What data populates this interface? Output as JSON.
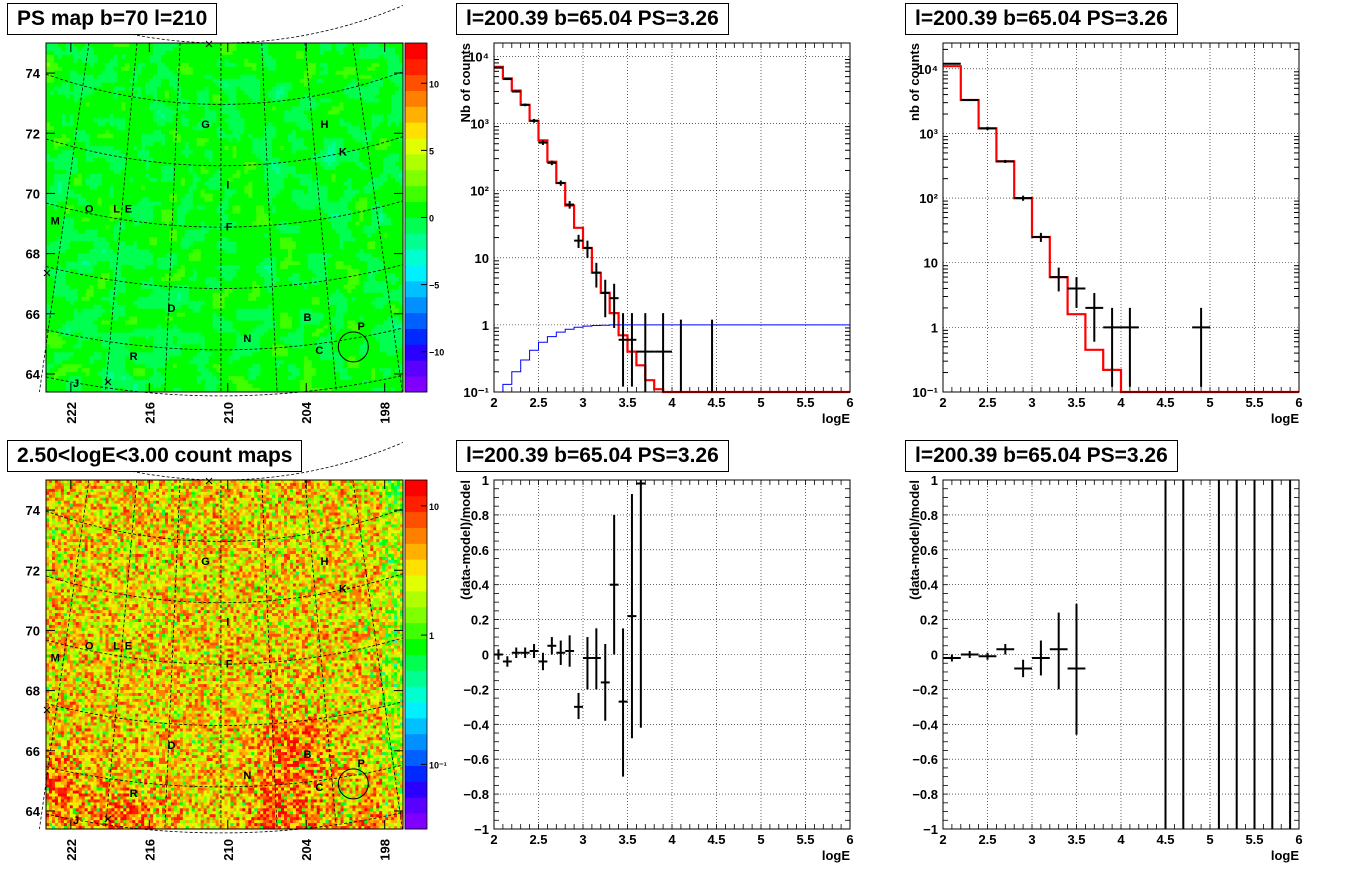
{
  "panels": {
    "map1_title": "PS map b=70 l=210",
    "map2_title": "2.50<logE<3.00 count maps",
    "spec_title": "l=200.39 b=65.04 PS=3.26"
  },
  "map_axes": {
    "b_ticks": [
      "74",
      "72",
      "70",
      "68",
      "66",
      "64"
    ],
    "b_values": [
      74,
      72,
      70,
      68,
      66,
      64
    ],
    "l_ticks": [
      "222",
      "216",
      "210",
      "204",
      "198"
    ],
    "l_values": [
      222,
      216,
      210,
      204,
      198
    ],
    "b_range": [
      63.4,
      75.0
    ],
    "l_range": [
      223.9,
      196.6
    ],
    "source_labels": [
      {
        "t": "G",
        "l": 211.7,
        "b": 72.3
      },
      {
        "t": "H",
        "l": 202.6,
        "b": 72.3
      },
      {
        "t": "K",
        "l": 201.2,
        "b": 71.4
      },
      {
        "t": "I",
        "l": 210.0,
        "b": 70.3
      },
      {
        "t": "M",
        "l": 223.2,
        "b": 69.1
      },
      {
        "t": "O",
        "l": 220.6,
        "b": 69.5
      },
      {
        "t": "L",
        "l": 218.5,
        "b": 69.5
      },
      {
        "t": "E",
        "l": 217.6,
        "b": 69.5
      },
      {
        "t": "F",
        "l": 209.9,
        "b": 68.9
      },
      {
        "t": "D",
        "l": 214.3,
        "b": 66.2
      },
      {
        "t": "B",
        "l": 203.9,
        "b": 65.9
      },
      {
        "t": "P",
        "l": 199.8,
        "b": 65.6
      },
      {
        "t": "N",
        "l": 208.5,
        "b": 65.2
      },
      {
        "t": "C",
        "l": 203.0,
        "b": 64.8
      },
      {
        "t": "R",
        "l": 217.2,
        "b": 64.6
      },
      {
        "t": "J",
        "l": 221.6,
        "b": 63.7
      }
    ],
    "circle": {
      "l": 200.4,
      "b": 64.9
    }
  },
  "map1_palette": {
    "ticks": [
      "10",
      "5",
      "0",
      "−5",
      "−10"
    ],
    "tick_values": [
      10,
      5,
      0,
      -5,
      -10
    ],
    "range": [
      -13,
      13
    ],
    "colors": [
      "#7f00ff",
      "#5a00ff",
      "#2a00ff",
      "#0028ff",
      "#0060ff",
      "#0090ff",
      "#00c0ff",
      "#00f0ff",
      "#00ffd0",
      "#00ff90",
      "#00ff50",
      "#00ff00",
      "#40ff00",
      "#80ff00",
      "#b0ff00",
      "#e0ff00",
      "#ffe000",
      "#ffb000",
      "#ff8000",
      "#ff5000",
      "#ff2000",
      "#ff0000"
    ]
  },
  "map2_palette": {
    "ticks": [
      "10",
      "1",
      "10⁻¹"
    ],
    "tick_values": [
      10,
      1,
      0.1
    ],
    "log_range": [
      -1.5,
      1.2
    ],
    "colors": [
      "#7f00ff",
      "#5a00ff",
      "#2a00ff",
      "#0028ff",
      "#0060ff",
      "#0090ff",
      "#00c0ff",
      "#00f0ff",
      "#00ffd0",
      "#00ff90",
      "#00ff50",
      "#00ff00",
      "#40ff00",
      "#80ff00",
      "#b0ff00",
      "#e0ff00",
      "#ffe000",
      "#ffb000",
      "#ff8000",
      "#ff5000",
      "#ff2000",
      "#ff0000"
    ]
  },
  "chart_data": [
    {
      "type": "line",
      "id": "spec1",
      "title": "l=200.39 b=65.04 PS=3.26",
      "xlabel": "logE",
      "ylabel": "Nb of counts",
      "xlim": [
        2,
        6
      ],
      "ylim_log": [
        -1,
        4.2
      ],
      "x_ticks": [
        "2",
        "2.5",
        "3",
        "3.5",
        "4",
        "4.5",
        "5",
        "5.5",
        "6"
      ],
      "x_tick_values": [
        2,
        2.5,
        3,
        3.5,
        4,
        4.5,
        5,
        5.5,
        6
      ],
      "y_ticks": [
        "10⁻¹",
        "1",
        "10",
        "10²",
        "10³",
        "10⁴"
      ],
      "y_tick_values": [
        0.1,
        1,
        10,
        100,
        1000,
        10000
      ],
      "grid": true,
      "series": [
        {
          "kind": "step",
          "color": "#ff0000",
          "width": 2.2,
          "edges": [
            2,
            2.1,
            2.2,
            2.3,
            2.4,
            2.5,
            2.6,
            2.7,
            2.8,
            2.9,
            3,
            3.1,
            3.2,
            3.3,
            3.4,
            3.5,
            3.6,
            3.7,
            3.8,
            3.9,
            4,
            4.1,
            6
          ],
          "values": [
            7000,
            4700,
            3100,
            1900,
            1100,
            560,
            270,
            130,
            60,
            28,
            14,
            6,
            3,
            1.5,
            0.7,
            0.4,
            0.25,
            0.15,
            0.11,
            0.1,
            0.1,
            0.1
          ]
        },
        {
          "kind": "step",
          "color": "#0000ff",
          "width": 1,
          "edges": [
            2,
            2.1,
            2.2,
            2.3,
            2.4,
            2.5,
            2.6,
            2.7,
            2.8,
            2.9,
            3,
            3.1,
            3.2,
            3.3,
            6
          ],
          "values": [
            0.1,
            0.13,
            0.2,
            0.3,
            0.42,
            0.55,
            0.67,
            0.78,
            0.86,
            0.92,
            0.96,
            0.98,
            0.99,
            1.0
          ]
        },
        {
          "kind": "points",
          "color": "#000000",
          "points": [
            {
              "x": 2.05,
              "y": 6800,
              "xe": 0.05,
              "lo": 6600,
              "hi": 7000
            },
            {
              "x": 2.15,
              "y": 4600,
              "xe": 0.05,
              "lo": 4450,
              "hi": 4750
            },
            {
              "x": 2.25,
              "y": 3000,
              "xe": 0.05,
              "lo": 2890,
              "hi": 3110
            },
            {
              "x": 2.35,
              "y": 1900,
              "xe": 0.05,
              "lo": 1810,
              "hi": 1990
            },
            {
              "x": 2.45,
              "y": 1100,
              "xe": 0.05,
              "lo": 1030,
              "hi": 1170
            },
            {
              "x": 2.55,
              "y": 520,
              "xe": 0.05,
              "lo": 480,
              "hi": 560
            },
            {
              "x": 2.65,
              "y": 260,
              "xe": 0.05,
              "lo": 240,
              "hi": 280
            },
            {
              "x": 2.75,
              "y": 130,
              "xe": 0.05,
              "lo": 118,
              "hi": 142
            },
            {
              "x": 2.85,
              "y": 62,
              "xe": 0.05,
              "lo": 54,
              "hi": 70
            },
            {
              "x": 2.95,
              "y": 18,
              "xe": 0.05,
              "lo": 14,
              "hi": 22
            },
            {
              "x": 3.05,
              "y": 14,
              "xe": 0.05,
              "lo": 10,
              "hi": 18
            },
            {
              "x": 3.15,
              "y": 6,
              "xe": 0.05,
              "lo": 3.6,
              "hi": 8.4
            },
            {
              "x": 3.25,
              "y": 3,
              "xe": 0.05,
              "lo": 1.3,
              "hi": 4.7
            },
            {
              "x": 3.35,
              "y": 2.5,
              "xe": 0.05,
              "lo": 0.9,
              "hi": 4.1
            },
            {
              "x": 3.45,
              "y": 0.6,
              "xe": 0.05,
              "lo": 0.12,
              "hi": 1.5
            },
            {
              "x": 3.55,
              "y": 0.6,
              "xe": 0.05,
              "lo": 0.12,
              "hi": 1.5
            },
            {
              "x": 3.7,
              "y": 0.4,
              "xe": 0.1,
              "lo": 0.1,
              "hi": 1.5
            },
            {
              "x": 3.9,
              "y": 0.4,
              "xe": 0.1,
              "lo": 0.1,
              "hi": 1.5
            },
            {
              "x": 4.1,
              "y": 0.12,
              "xe": 0,
              "lo": 0.1,
              "hi": 1.2
            },
            {
              "x": 4.45,
              "y": 0.12,
              "xe": 0,
              "lo": 0.1,
              "hi": 1.2
            }
          ]
        }
      ]
    },
    {
      "type": "line",
      "id": "spec2",
      "title": "l=200.39 b=65.04 PS=3.26",
      "xlabel": "logE",
      "ylabel": "nb of counts",
      "xlim": [
        2,
        6
      ],
      "ylim_log": [
        -1,
        4.4
      ],
      "x_ticks": [
        "2",
        "2.5",
        "3",
        "3.5",
        "4",
        "4.5",
        "5",
        "5.5",
        "6"
      ],
      "x_tick_values": [
        2,
        2.5,
        3,
        3.5,
        4,
        4.5,
        5,
        5.5,
        6
      ],
      "y_ticks": [
        "10⁻¹",
        "1",
        "10",
        "10²",
        "10³",
        "10⁴"
      ],
      "y_tick_values": [
        0.1,
        1,
        10,
        100,
        1000,
        10000
      ],
      "grid": true,
      "series": [
        {
          "kind": "step",
          "color": "#ff0000",
          "width": 2.2,
          "edges": [
            2,
            2.2,
            2.4,
            2.6,
            2.8,
            3,
            3.2,
            3.4,
            3.6,
            3.8,
            4,
            4.2,
            6
          ],
          "values": [
            11000,
            3300,
            1200,
            370,
            100,
            25,
            6,
            1.6,
            0.45,
            0.22,
            0.1,
            0.1
          ]
        },
        {
          "kind": "points",
          "color": "#000000",
          "points": [
            {
              "x": 2.1,
              "y": 12000,
              "xe": 0.1,
              "lo": 11700,
              "hi": 12300
            },
            {
              "x": 2.3,
              "y": 3300,
              "xe": 0.1,
              "lo": 3180,
              "hi": 3420
            },
            {
              "x": 2.5,
              "y": 1200,
              "xe": 0.1,
              "lo": 1130,
              "hi": 1270
            },
            {
              "x": 2.7,
              "y": 370,
              "xe": 0.1,
              "lo": 350,
              "hi": 390
            },
            {
              "x": 2.9,
              "y": 100,
              "xe": 0.1,
              "lo": 91,
              "hi": 109
            },
            {
              "x": 3.1,
              "y": 25,
              "xe": 0.1,
              "lo": 21,
              "hi": 29
            },
            {
              "x": 3.3,
              "y": 6,
              "xe": 0.1,
              "lo": 3.6,
              "hi": 8.4
            },
            {
              "x": 3.5,
              "y": 4,
              "xe": 0.1,
              "lo": 2,
              "hi": 6
            },
            {
              "x": 3.7,
              "y": 2,
              "xe": 0.1,
              "lo": 0.6,
              "hi": 3.4
            },
            {
              "x": 3.9,
              "y": 1,
              "xe": 0.1,
              "lo": 0.12,
              "hi": 2
            },
            {
              "x": 4.1,
              "y": 1,
              "xe": 0.1,
              "lo": 0.12,
              "hi": 2
            },
            {
              "x": 4.9,
              "y": 1,
              "xe": 0.1,
              "lo": 0.12,
              "hi": 2
            }
          ]
        }
      ]
    },
    {
      "type": "scatter",
      "id": "res1",
      "title": "l=200.39 b=65.04 PS=3.26",
      "xlabel": "logE",
      "ylabel": "(data-model)/model",
      "xlim": [
        2,
        6
      ],
      "ylim": [
        -1,
        1
      ],
      "x_ticks": [
        "2",
        "2.5",
        "3",
        "3.5",
        "4",
        "4.5",
        "5",
        "5.5",
        "6"
      ],
      "x_tick_values": [
        2,
        2.5,
        3,
        3.5,
        4,
        4.5,
        5,
        5.5,
        6
      ],
      "y_ticks": [
        "−1",
        "−0.8",
        "−0.6",
        "−0.4",
        "−0.2",
        "0",
        "0.2",
        "0.4",
        "0.6",
        "0.8",
        "1"
      ],
      "y_tick_values": [
        -1,
        -0.8,
        -0.6,
        -0.4,
        -0.2,
        0,
        0.2,
        0.4,
        0.6,
        0.8,
        1
      ],
      "grid": true,
      "points": [
        {
          "x": 2.05,
          "y": 0.0,
          "xe": 0.05,
          "lo": -0.03,
          "hi": 0.03
        },
        {
          "x": 2.15,
          "y": -0.04,
          "xe": 0.05,
          "lo": -0.07,
          "hi": -0.01
        },
        {
          "x": 2.25,
          "y": 0.01,
          "xe": 0.05,
          "lo": -0.02,
          "hi": 0.04
        },
        {
          "x": 2.35,
          "y": 0.01,
          "xe": 0.05,
          "lo": -0.02,
          "hi": 0.04
        },
        {
          "x": 2.45,
          "y": 0.02,
          "xe": 0.05,
          "lo": -0.02,
          "hi": 0.06
        },
        {
          "x": 2.55,
          "y": -0.04,
          "xe": 0.05,
          "lo": -0.09,
          "hi": 0.01
        },
        {
          "x": 2.65,
          "y": 0.05,
          "xe": 0.05,
          "lo": 0.0,
          "hi": 0.1
        },
        {
          "x": 2.75,
          "y": 0.01,
          "xe": 0.05,
          "lo": -0.06,
          "hi": 0.08
        },
        {
          "x": 2.85,
          "y": 0.02,
          "xe": 0.05,
          "lo": -0.07,
          "hi": 0.11
        },
        {
          "x": 2.95,
          "y": -0.3,
          "xe": 0.05,
          "lo": -0.37,
          "hi": -0.22
        },
        {
          "x": 3.05,
          "y": -0.02,
          "xe": 0.05,
          "lo": -0.2,
          "hi": 0.1
        },
        {
          "x": 3.15,
          "y": -0.02,
          "xe": 0.05,
          "lo": -0.2,
          "hi": 0.15
        },
        {
          "x": 3.25,
          "y": -0.16,
          "xe": 0.05,
          "lo": -0.38,
          "hi": 0.06
        },
        {
          "x": 3.35,
          "y": 0.4,
          "xe": 0.05,
          "lo": 0.0,
          "hi": 0.8
        },
        {
          "x": 3.45,
          "y": -0.27,
          "xe": 0.05,
          "lo": -0.7,
          "hi": 0.15
        },
        {
          "x": 3.55,
          "y": 0.22,
          "xe": 0.05,
          "lo": -0.48,
          "hi": 0.92
        },
        {
          "x": 3.65,
          "y": 0.98,
          "xe": 0.05,
          "lo": -0.42,
          "hi": 1.0
        }
      ]
    },
    {
      "type": "scatter",
      "id": "res2",
      "title": "l=200.39 b=65.04 PS=3.26",
      "xlabel": "logE",
      "ylabel": "(data-model)/model",
      "xlim": [
        2,
        6
      ],
      "ylim": [
        -1,
        1
      ],
      "x_ticks": [
        "2",
        "2.5",
        "3",
        "3.5",
        "4",
        "4.5",
        "5",
        "5.5",
        "6"
      ],
      "x_tick_values": [
        2,
        2.5,
        3,
        3.5,
        4,
        4.5,
        5,
        5.5,
        6
      ],
      "y_ticks": [
        "−1",
        "−0.8",
        "−0.6",
        "−0.4",
        "−0.2",
        "0",
        "0.2",
        "0.4",
        "0.6",
        "0.8",
        "1"
      ],
      "y_tick_values": [
        -1,
        -0.8,
        -0.6,
        -0.4,
        -0.2,
        0,
        0.2,
        0.4,
        0.6,
        0.8,
        1
      ],
      "grid": true,
      "points": [
        {
          "x": 2.1,
          "y": -0.02,
          "xe": 0.1,
          "lo": -0.04,
          "hi": 0.0
        },
        {
          "x": 2.3,
          "y": 0.0,
          "xe": 0.1,
          "lo": -0.02,
          "hi": 0.02
        },
        {
          "x": 2.5,
          "y": -0.01,
          "xe": 0.1,
          "lo": -0.03,
          "hi": 0.01
        },
        {
          "x": 2.7,
          "y": 0.03,
          "xe": 0.1,
          "lo": 0.0,
          "hi": 0.06
        },
        {
          "x": 2.9,
          "y": -0.08,
          "xe": 0.1,
          "lo": -0.13,
          "hi": -0.03
        },
        {
          "x": 3.1,
          "y": -0.02,
          "xe": 0.1,
          "lo": -0.12,
          "hi": 0.08
        },
        {
          "x": 3.3,
          "y": 0.03,
          "xe": 0.1,
          "lo": -0.2,
          "hi": 0.24
        },
        {
          "x": 3.5,
          "y": -0.08,
          "xe": 0.1,
          "lo": -0.46,
          "hi": 0.29
        },
        {
          "x": 4.5,
          "y": 1,
          "xe": 0,
          "lo": -1,
          "hi": 1
        },
        {
          "x": 4.7,
          "y": 1,
          "xe": 0,
          "lo": -1,
          "hi": 1
        },
        {
          "x": 5.1,
          "y": 1,
          "xe": 0,
          "lo": -1,
          "hi": 1
        },
        {
          "x": 5.3,
          "y": 1,
          "xe": 0,
          "lo": -1,
          "hi": 1
        },
        {
          "x": 5.5,
          "y": 1,
          "xe": 0,
          "lo": -1,
          "hi": 1
        },
        {
          "x": 5.7,
          "y": 1,
          "xe": 0,
          "lo": -1,
          "hi": 1
        },
        {
          "x": 5.9,
          "y": 1,
          "xe": 0,
          "lo": -1,
          "hi": 1
        }
      ]
    }
  ]
}
